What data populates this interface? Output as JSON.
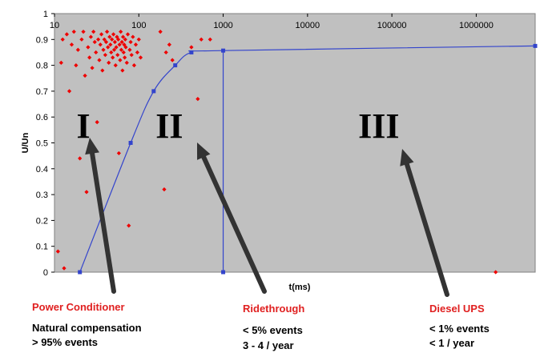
{
  "chart_data": {
    "type": "scatter",
    "xlabel": "t(ms)",
    "ylabel": "U/Un",
    "x_scale": "log",
    "xlim": [
      10,
      5000000
    ],
    "ylim": [
      0,
      1
    ],
    "x_ticks": [
      "10",
      "100",
      "1000",
      "10000",
      "100000",
      "1000000"
    ],
    "y_ticks": [
      "0",
      "0.1",
      "0.2",
      "0.3",
      "0.4",
      "0.5",
      "0.6",
      "0.7",
      "0.8",
      "0.9",
      "1"
    ],
    "grid": false,
    "plot_background": "#c0c0c0",
    "curve": {
      "color": "#3344cc",
      "points": [
        [
          20,
          0
        ],
        [
          80,
          0.5
        ],
        [
          150,
          0.7
        ],
        [
          270,
          0.8
        ],
        [
          420,
          0.85
        ],
        [
          1000,
          0.857
        ],
        [
          5000000,
          0.875
        ]
      ],
      "vertical_line_x": 1000,
      "vertical_line_points": [
        [
          1000,
          0
        ],
        [
          1000,
          0.857
        ]
      ]
    },
    "events": {
      "color": "#ee0000",
      "points": [
        [
          11,
          0.08
        ],
        [
          12,
          0.81
        ],
        [
          12.5,
          0.9
        ],
        [
          13,
          0.015
        ],
        [
          14,
          0.92
        ],
        [
          15,
          0.7
        ],
        [
          16,
          0.88
        ],
        [
          17,
          0.93
        ],
        [
          18,
          0.8
        ],
        [
          19,
          0.86
        ],
        [
          20,
          0.44
        ],
        [
          21,
          0.9
        ],
        [
          22,
          0.93
        ],
        [
          23,
          0.76
        ],
        [
          24,
          0.31
        ],
        [
          25,
          0.87
        ],
        [
          26,
          0.83
        ],
        [
          27,
          0.91
        ],
        [
          28,
          0.79
        ],
        [
          29,
          0.93
        ],
        [
          30,
          0.89
        ],
        [
          31,
          0.85
        ],
        [
          32,
          0.58
        ],
        [
          33,
          0.9
        ],
        [
          34,
          0.82
        ],
        [
          35,
          0.88
        ],
        [
          36,
          0.92
        ],
        [
          37,
          0.78
        ],
        [
          38,
          0.86
        ],
        [
          39,
          0.9
        ],
        [
          40,
          0.84
        ],
        [
          41,
          0.89
        ],
        [
          42,
          0.93
        ],
        [
          43,
          0.87
        ],
        [
          44,
          0.81
        ],
        [
          45,
          0.91
        ],
        [
          46,
          0.88
        ],
        [
          47,
          0.85
        ],
        [
          48,
          0.9
        ],
        [
          49,
          0.83
        ],
        [
          50,
          0.92
        ],
        [
          51,
          0.86
        ],
        [
          52,
          0.89
        ],
        [
          53,
          0.8
        ],
        [
          54,
          0.87
        ],
        [
          55,
          0.91
        ],
        [
          56,
          0.84
        ],
        [
          57,
          0.9
        ],
        [
          58,
          0.46
        ],
        [
          59,
          0.88
        ],
        [
          60,
          0.82
        ],
        [
          61,
          0.93
        ],
        [
          62,
          0.86
        ],
        [
          63,
          0.89
        ],
        [
          64,
          0.78
        ],
        [
          65,
          0.91
        ],
        [
          66,
          0.85
        ],
        [
          67,
          0.88
        ],
        [
          68,
          0.83
        ],
        [
          69,
          0.9
        ],
        [
          70,
          0.87
        ],
        [
          72,
          0.81
        ],
        [
          74,
          0.92
        ],
        [
          76,
          0.18
        ],
        [
          78,
          0.86
        ],
        [
          80,
          0.89
        ],
        [
          82,
          0.84
        ],
        [
          85,
          0.91
        ],
        [
          88,
          0.8
        ],
        [
          92,
          0.88
        ],
        [
          96,
          0.85
        ],
        [
          100,
          0.9
        ],
        [
          105,
          0.83
        ],
        [
          180,
          0.93
        ],
        [
          200,
          0.32
        ],
        [
          210,
          0.85
        ],
        [
          230,
          0.88
        ],
        [
          250,
          0.82
        ],
        [
          420,
          0.87
        ],
        [
          500,
          0.67
        ],
        [
          550,
          0.9
        ],
        [
          700,
          0.9
        ],
        [
          1700000,
          0
        ]
      ]
    },
    "annotations": [
      {
        "label": "I",
        "x": 22,
        "y": 0.57
      },
      {
        "label": "II",
        "x": 230,
        "y": 0.57
      },
      {
        "label": "III",
        "x": 70000,
        "y": 0.57
      }
    ]
  },
  "captions": {
    "power_conditioner": "Power Conditioner",
    "natural_compensation": "Natural compensation",
    "events_95": "> 95% events",
    "ridethrough": "Ridethrough",
    "events_5": "< 5% events",
    "per_year_3_4": "3 - 4 / year",
    "diesel_ups": "Diesel UPS",
    "events_1": "< 1% events",
    "per_year_1": "< 1 / year"
  }
}
